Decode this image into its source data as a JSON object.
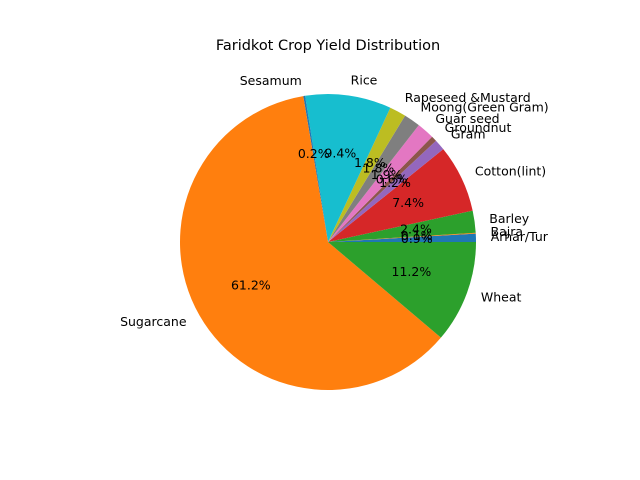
{
  "chart_data": {
    "type": "pie",
    "title": "Faridkot Crop Yield Distribution",
    "start_angle_deg": 0,
    "direction": "counterclockwise",
    "slices": [
      {
        "label": "Arhar/Tur",
        "pct_label": "0.9%",
        "value": 0.9,
        "color": "#1f77b4"
      },
      {
        "label": "Bajra",
        "pct_label": "0.1%",
        "value": 0.1,
        "color": "#ff7f0e"
      },
      {
        "label": "Barley",
        "pct_label": "2.4%",
        "value": 2.4,
        "color": "#2ca02c"
      },
      {
        "label": "Cotton(lint)",
        "pct_label": "7.4%",
        "value": 7.4,
        "color": "#d62728"
      },
      {
        "label": "Gram",
        "pct_label": "1.2%",
        "value": 1.2,
        "color": "#9467bd"
      },
      {
        "label": "Groundnut",
        "pct_label": "0.6%",
        "value": 0.6,
        "color": "#8c564b"
      },
      {
        "label": "Guar seed",
        "pct_label": "1.9%",
        "value": 1.9,
        "color": "#e377c2"
      },
      {
        "label": "Moong(Green Gram)",
        "pct_label": "1.8%",
        "value": 1.8,
        "color": "#7f7f7f"
      },
      {
        "label": "Rapeseed &Mustard",
        "pct_label": "1.8%",
        "value": 1.8,
        "color": "#bcbd22"
      },
      {
        "label": "Rice",
        "pct_label": "9.4%",
        "value": 9.4,
        "color": "#17becf"
      },
      {
        "label": "Sesamum",
        "pct_label": "0.2%",
        "value": 0.2,
        "color": "#1f77b4"
      },
      {
        "label": "Sugarcane",
        "pct_label": "61.2%",
        "value": 61.2,
        "color": "#ff7f0e"
      },
      {
        "label": "Wheat",
        "pct_label": "11.2%",
        "value": 11.2,
        "color": "#2ca02c"
      }
    ]
  }
}
